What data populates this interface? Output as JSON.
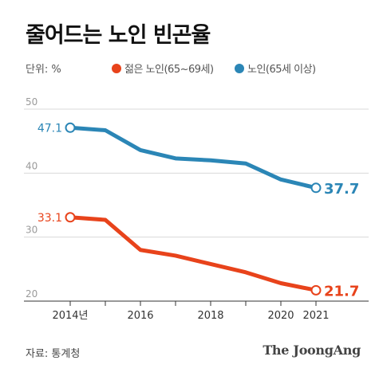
{
  "title": "줄어드는 노인 빈곤율",
  "unit_label": "단위: %",
  "source": "자료: 통계청",
  "brand": "The JoongAng",
  "colors": {
    "young_old": "#e8431b",
    "elderly": "#2b86b6",
    "grid": "#d9d9d9",
    "tick": "#9a9a9a"
  },
  "chart_data": {
    "type": "line",
    "x": [
      2014,
      2015,
      2016,
      2017,
      2018,
      2019,
      2020,
      2021
    ],
    "x_tick_labels": [
      {
        "x": 2014,
        "label": "2014년"
      },
      {
        "x": 2016,
        "label": "2016"
      },
      {
        "x": 2018,
        "label": "2018"
      },
      {
        "x": 2020,
        "label": "2020"
      },
      {
        "x": 2021,
        "label": "2021"
      }
    ],
    "y_ticks": [
      20,
      30,
      40,
      50
    ],
    "ylim": [
      20,
      50
    ],
    "grid": true,
    "legend_position": "top",
    "series": [
      {
        "name": "젊은 노인(65~69세)",
        "color": "#e8431b",
        "values": [
          33.1,
          32.7,
          28.0,
          27.1,
          25.8,
          24.5,
          22.8,
          21.7
        ],
        "start_label": "33.1",
        "end_label": "21.7"
      },
      {
        "name": "노인(65세 이상)",
        "color": "#2b86b6",
        "values": [
          47.1,
          46.7,
          43.6,
          42.3,
          42.0,
          41.5,
          39.0,
          37.7
        ],
        "start_label": "47.1",
        "end_label": "37.7"
      }
    ]
  }
}
